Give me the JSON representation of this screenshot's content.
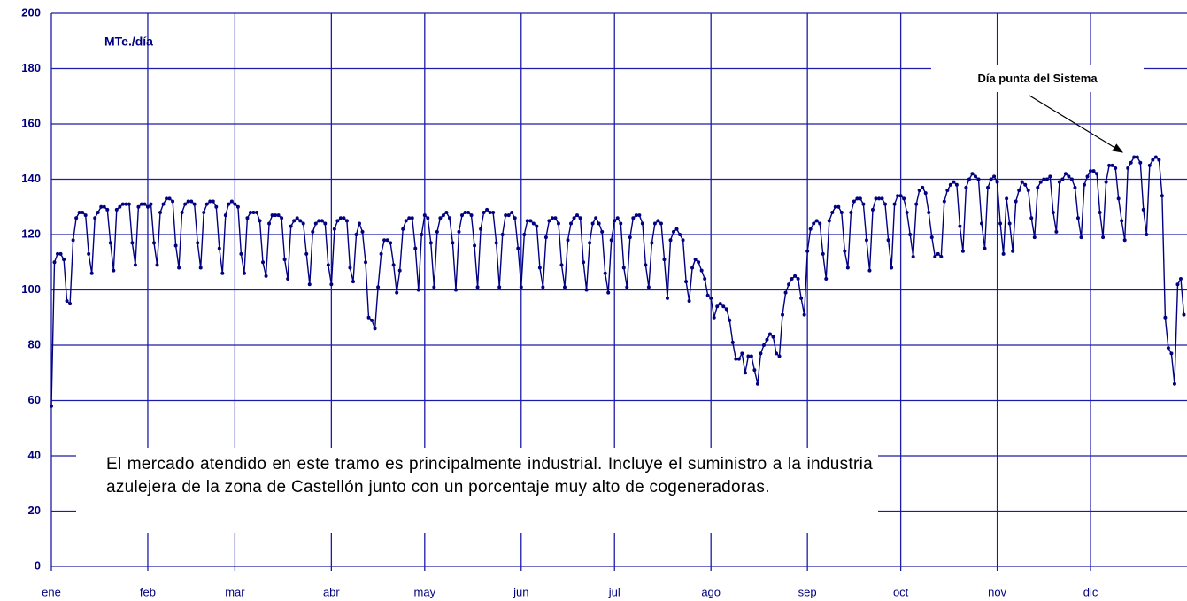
{
  "chart_data": {
    "type": "line",
    "ylabel": "MTe./día",
    "annotation": "Día punta del Sistema",
    "note": "El mercado atendido  en este tramo es principalmente industrial. Incluye el suministro  a  la  industria azulejera de la zona de Castellón junto con un porcentaje muy alto de cogeneradoras.",
    "color": "#000080",
    "grid": true,
    "ylim": [
      0,
      200
    ],
    "yticks": [
      0,
      20,
      40,
      60,
      80,
      100,
      120,
      140,
      160,
      180,
      200
    ],
    "xlim": [
      1,
      366
    ],
    "xticks": [
      {
        "value": 1,
        "label": "ene"
      },
      {
        "value": 32,
        "label": "feb"
      },
      {
        "value": 60,
        "label": "mar"
      },
      {
        "value": 91,
        "label": "abr"
      },
      {
        "value": 121,
        "label": "may"
      },
      {
        "value": 152,
        "label": "jun"
      },
      {
        "value": 182,
        "label": "jul"
      },
      {
        "value": 213,
        "label": "ago"
      },
      {
        "value": 244,
        "label": "sep"
      },
      {
        "value": 274,
        "label": "oct"
      },
      {
        "value": 305,
        "label": "nov"
      },
      {
        "value": 335,
        "label": "dic"
      }
    ],
    "x": [
      1,
      2,
      3,
      4,
      5,
      6,
      7,
      8,
      9,
      10,
      11,
      12,
      13,
      14,
      15,
      16,
      17,
      18,
      19,
      20,
      21,
      22,
      23,
      24,
      25,
      26,
      27,
      28,
      29,
      30,
      31,
      32,
      33,
      34,
      35,
      36,
      37,
      38,
      39,
      40,
      41,
      42,
      43,
      44,
      45,
      46,
      47,
      48,
      49,
      50,
      51,
      52,
      53,
      54,
      55,
      56,
      57,
      58,
      59,
      60,
      61,
      62,
      63,
      64,
      65,
      66,
      67,
      68,
      69,
      70,
      71,
      72,
      73,
      74,
      75,
      76,
      77,
      78,
      79,
      80,
      81,
      82,
      83,
      84,
      85,
      86,
      87,
      88,
      89,
      90,
      91,
      92,
      93,
      94,
      95,
      96,
      97,
      98,
      99,
      100,
      101,
      102,
      103,
      104,
      105,
      106,
      107,
      108,
      109,
      110,
      111,
      112,
      113,
      114,
      115,
      116,
      117,
      118,
      119,
      120,
      121,
      122,
      123,
      124,
      125,
      126,
      127,
      128,
      129,
      130,
      131,
      132,
      133,
      134,
      135,
      136,
      137,
      138,
      139,
      140,
      141,
      142,
      143,
      144,
      145,
      146,
      147,
      148,
      149,
      150,
      151,
      152,
      153,
      154,
      155,
      156,
      157,
      158,
      159,
      160,
      161,
      162,
      163,
      164,
      165,
      166,
      167,
      168,
      169,
      170,
      171,
      172,
      173,
      174,
      175,
      176,
      177,
      178,
      179,
      180,
      181,
      182,
      183,
      184,
      185,
      186,
      187,
      188,
      189,
      190,
      191,
      192,
      193,
      194,
      195,
      196,
      197,
      198,
      199,
      200,
      201,
      202,
      203,
      204,
      205,
      206,
      207,
      208,
      209,
      210,
      211,
      212,
      213,
      214,
      215,
      216,
      217,
      218,
      219,
      220,
      221,
      222,
      223,
      224,
      225,
      226,
      227,
      228,
      229,
      230,
      231,
      232,
      233,
      234,
      235,
      236,
      237,
      238,
      239,
      240,
      241,
      242,
      243,
      244,
      245,
      246,
      247,
      248,
      249,
      250,
      251,
      252,
      253,
      254,
      255,
      256,
      257,
      258,
      259,
      260,
      261,
      262,
      263,
      264,
      265,
      266,
      267,
      268,
      269,
      270,
      271,
      272,
      273,
      274,
      275,
      276,
      277,
      278,
      279,
      280,
      281,
      282,
      283,
      284,
      285,
      286,
      287,
      288,
      289,
      290,
      291,
      292,
      293,
      294,
      295,
      296,
      297,
      298,
      299,
      300,
      301,
      302,
      303,
      304,
      305,
      306,
      307,
      308,
      309,
      310,
      311,
      312,
      313,
      314,
      315,
      316,
      317,
      318,
      319,
      320,
      321,
      322,
      323,
      324,
      325,
      326,
      327,
      328,
      329,
      330,
      331,
      332,
      333,
      334,
      335,
      336,
      337,
      338,
      339,
      340,
      341,
      342,
      343,
      344,
      345,
      346,
      347,
      348,
      349,
      350,
      351,
      352,
      353,
      354,
      355,
      356,
      357,
      358,
      359,
      360,
      361,
      362,
      363,
      364,
      365
    ],
    "values": [
      58,
      110,
      113,
      113,
      111,
      96,
      95,
      118,
      126,
      128,
      128,
      127,
      113,
      106,
      126,
      128,
      130,
      130,
      129,
      117,
      107,
      129,
      130,
      131,
      131,
      131,
      117,
      109,
      130,
      131,
      131,
      130,
      131,
      117,
      109,
      128,
      131,
      133,
      133,
      132,
      116,
      108,
      128,
      131,
      132,
      132,
      131,
      117,
      108,
      128,
      131,
      132,
      132,
      130,
      115,
      106,
      127,
      131,
      132,
      131,
      130,
      113,
      106,
      126,
      128,
      128,
      128,
      125,
      110,
      105,
      124,
      127,
      127,
      127,
      126,
      111,
      104,
      123,
      125,
      126,
      125,
      124,
      113,
      102,
      121,
      124,
      125,
      125,
      124,
      109,
      102,
      122,
      125,
      126,
      126,
      125,
      108,
      103,
      120,
      124,
      121,
      110,
      90,
      89,
      86,
      101,
      113,
      118,
      118,
      117,
      109,
      99,
      107,
      122,
      125,
      126,
      126,
      115,
      100,
      120,
      127,
      126,
      117,
      101,
      121,
      126,
      127,
      128,
      126,
      117,
      100,
      121,
      127,
      128,
      128,
      127,
      116,
      101,
      122,
      128,
      129,
      128,
      128,
      117,
      101,
      120,
      127,
      127,
      128,
      126,
      115,
      101,
      120,
      125,
      125,
      124,
      123,
      108,
      101,
      119,
      125,
      126,
      126,
      124,
      109,
      101,
      118,
      124,
      126,
      127,
      126,
      110,
      100,
      117,
      124,
      126,
      124,
      121,
      106,
      99,
      118,
      125,
      126,
      124,
      108,
      101,
      119,
      126,
      127,
      127,
      124,
      109,
      101,
      117,
      124,
      125,
      124,
      111,
      97,
      118,
      121,
      122,
      120,
      118,
      103,
      96,
      108,
      111,
      110,
      107,
      104,
      98,
      97,
      90,
      94,
      95,
      94,
      93,
      89,
      81,
      75,
      75,
      77,
      70,
      76,
      76,
      71,
      66,
      77,
      80,
      82,
      84,
      83,
      77,
      76,
      91,
      99,
      102,
      104,
      105,
      104,
      97,
      91,
      114,
      122,
      124,
      125,
      124,
      113,
      104,
      125,
      128,
      130,
      130,
      128,
      114,
      108,
      128,
      132,
      133,
      133,
      131,
      118,
      107,
      129,
      133,
      133,
      133,
      131,
      118,
      108,
      131,
      134,
      134,
      133,
      128,
      120,
      112,
      131,
      136,
      137,
      135,
      128,
      119,
      112,
      113,
      112,
      132,
      136,
      138,
      139,
      138,
      123,
      114,
      137,
      140,
      142,
      141,
      140,
      124,
      115,
      137,
      140,
      141,
      139,
      124,
      113,
      133,
      124,
      114,
      132,
      136,
      139,
      138,
      136,
      126,
      119,
      137,
      139,
      140,
      140,
      141,
      128,
      121,
      139,
      140,
      142,
      141,
      140,
      137,
      126,
      119,
      138,
      141,
      143,
      143,
      142,
      128,
      119,
      139,
      145,
      145,
      144,
      133,
      125,
      118,
      144,
      146,
      148,
      148,
      146,
      129,
      120,
      145,
      147,
      148,
      147,
      134,
      90,
      79,
      77,
      66,
      102,
      104,
      91
    ]
  }
}
